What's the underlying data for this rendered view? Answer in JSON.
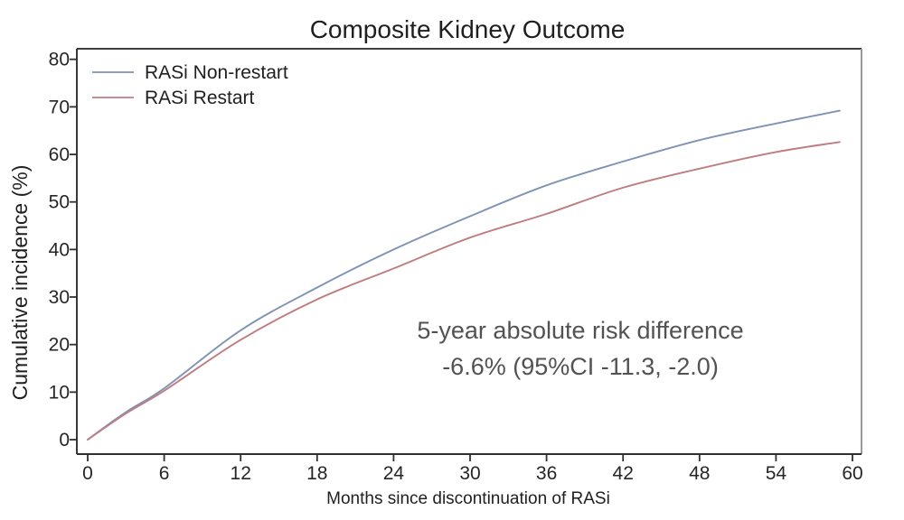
{
  "chart_data": {
    "type": "line",
    "title": "Composite Kidney Outcome",
    "xlabel": "Months since discontinuation of RASi",
    "ylabel": "Cumulative incidence (%)",
    "xlim": [
      0,
      60
    ],
    "ylim": [
      0,
      80
    ],
    "xticks": [
      0,
      6,
      12,
      18,
      24,
      30,
      36,
      42,
      48,
      54,
      60
    ],
    "yticks": [
      0,
      10,
      20,
      30,
      40,
      50,
      60,
      70,
      80
    ],
    "grid": false,
    "legend_position": "top-left",
    "x": [
      0,
      3,
      6,
      12,
      18,
      24,
      30,
      36,
      42,
      48,
      54,
      59
    ],
    "series": [
      {
        "name": "RASi Non-restart",
        "color": "#7f93b5",
        "values": [
          0,
          5.8,
          10.8,
          23,
          32,
          40,
          47,
          53.5,
          58.5,
          63,
          66.5,
          69.2
        ]
      },
      {
        "name": "RASi Restart",
        "color": "#bf7d81",
        "values": [
          0,
          5.5,
          10.3,
          21,
          29.5,
          36,
          42.5,
          47.5,
          53,
          57,
          60.5,
          62.6
        ]
      }
    ],
    "annotation": [
      "5-year absolute risk difference",
      "-6.6% (95%CI -11.3, -2.0)"
    ],
    "axis_colors": {
      "left": "#2f2f2f",
      "bottom": "#2f2f2f",
      "top": "#3d3d3d",
      "right": "#949494"
    },
    "tick_color": "#2f2f2f"
  }
}
